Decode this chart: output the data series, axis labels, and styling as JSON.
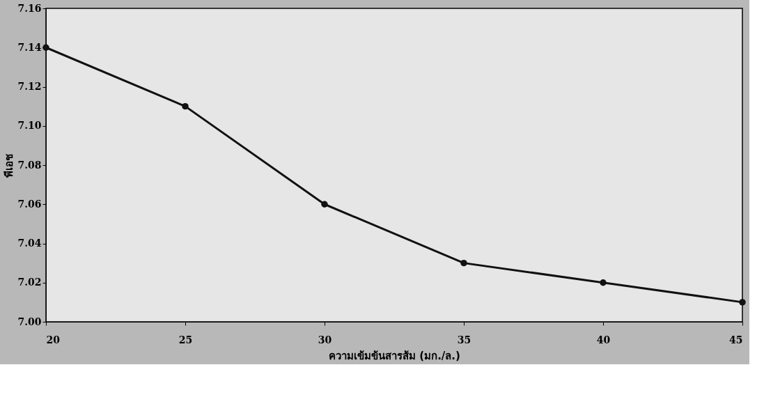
{
  "chart_data": {
    "type": "line",
    "xlabel": "ความเข้มข้นสารส้ม (มก./ล.)",
    "ylabel": "พีเอช",
    "x": [
      20,
      25,
      30,
      35,
      40,
      45
    ],
    "series": [
      {
        "color": "#111111",
        "values": [
          7.14,
          7.11,
          7.06,
          7.03,
          7.02,
          7.01
        ]
      }
    ],
    "xlim": [
      20,
      45
    ],
    "xticks": [
      20,
      25,
      30,
      35,
      40,
      45
    ],
    "ylim": [
      7.0,
      7.16
    ],
    "yticks": [
      {
        "value": 7.0,
        "label": "7.00"
      },
      {
        "value": 7.02,
        "label": "7.02"
      },
      {
        "value": 7.04,
        "label": "7.04"
      },
      {
        "value": 7.06,
        "label": "7.06"
      },
      {
        "value": 7.08,
        "label": "7.08"
      },
      {
        "value": 7.1,
        "label": "7.10"
      },
      {
        "value": 7.12,
        "label": "7.12"
      },
      {
        "value": 7.14,
        "label": "7.14"
      },
      {
        "value": 7.16,
        "label": "7.16"
      }
    ],
    "marker": "circle",
    "line_style": "solid",
    "grid": false,
    "legend": false
  }
}
